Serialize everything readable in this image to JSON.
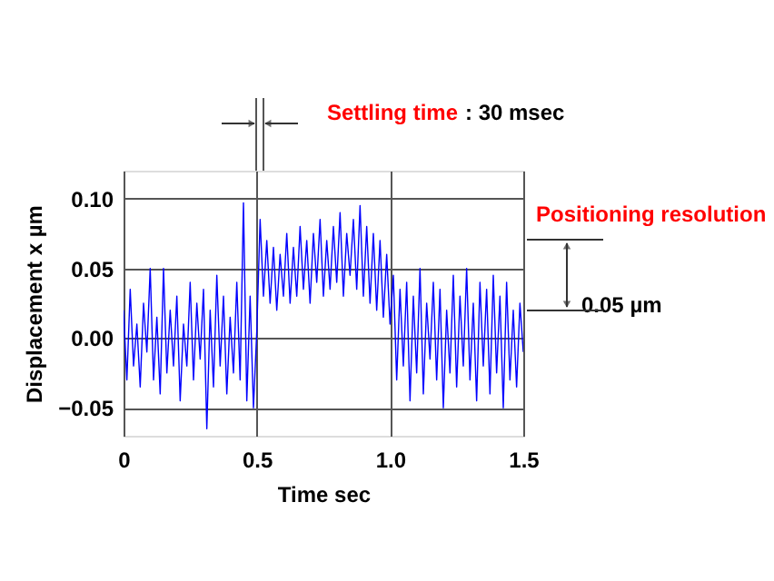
{
  "chart_data": {
    "type": "line",
    "xlabel": "Time sec",
    "ylabel": "Displacement x µm",
    "annotations": [
      "Settling time",
      ": 30 msec",
      "Positioning resolution",
      "0.05 µm"
    ],
    "xlim": [
      0,
      1.5
    ],
    "xticks": [
      {
        "value": 0,
        "label": "0"
      },
      0.5,
      {
        "value": 1.0,
        "label": "1.0"
      },
      1.5
    ],
    "ylim": [
      -0.07,
      0.12
    ],
    "yticks": [
      {
        "value": -0.05,
        "label": "−0.05"
      },
      {
        "value": 0,
        "label": "0.00"
      },
      0.05,
      {
        "value": 0.1,
        "label": "0.10"
      }
    ],
    "grid": true,
    "marker": "none",
    "line_style": "solid",
    "x": [
      0,
      0.0125,
      0.025,
      0.0375,
      0.05,
      0.0625,
      0.075,
      0.0875,
      0.1,
      0.1125,
      0.125,
      0.1375,
      0.15,
      0.1625,
      0.175,
      0.1875,
      0.2,
      0.2125,
      0.225,
      0.2375,
      0.25,
      0.2625,
      0.275,
      0.2875,
      0.3,
      0.3125,
      0.325,
      0.3375,
      0.35,
      0.3625,
      0.375,
      0.3875,
      0.4,
      0.4125,
      0.425,
      0.4375,
      0.45,
      0.4625,
      0.475,
      0.4875,
      0.5,
      0.5125,
      0.525,
      0.5375,
      0.55,
      0.5625,
      0.575,
      0.5875,
      0.6,
      0.6125,
      0.625,
      0.6375,
      0.65,
      0.6625,
      0.675,
      0.6875,
      0.7,
      0.7125,
      0.725,
      0.7375,
      0.75,
      0.7625,
      0.775,
      0.7875,
      0.8,
      0.8125,
      0.825,
      0.8375,
      0.85,
      0.8625,
      0.875,
      0.8875,
      0.9,
      0.9125,
      0.925,
      0.9375,
      0.95,
      0.9625,
      0.975,
      0.9875,
      1.0,
      1.0125,
      1.025,
      1.0375,
      1.05,
      1.0625,
      1.075,
      1.0875,
      1.1,
      1.1125,
      1.125,
      1.1375,
      1.15,
      1.1625,
      1.175,
      1.1875,
      1.2,
      1.2125,
      1.225,
      1.2375,
      1.25,
      1.2625,
      1.275,
      1.2875,
      1.3,
      1.3125,
      1.325,
      1.3375,
      1.35,
      1.3625,
      1.375,
      1.3875,
      1.4,
      1.4125,
      1.425,
      1.4375,
      1.45,
      1.4625,
      1.475,
      1.4875,
      1.5
    ],
    "series": [
      {
        "color": "#0000ff",
        "values": [
          0.02,
          -0.03,
          0.035,
          -0.02,
          0.01,
          -0.035,
          0.025,
          -0.01,
          0.05,
          -0.03,
          0.015,
          -0.04,
          0.05,
          -0.025,
          0.02,
          -0.02,
          0.03,
          -0.045,
          0.01,
          -0.02,
          0.04,
          -0.03,
          0.025,
          -0.015,
          0.035,
          -0.065,
          0.02,
          -0.035,
          0.045,
          -0.02,
          0.03,
          -0.04,
          0.015,
          -0.025,
          0.04,
          -0.03,
          0.097,
          -0.045,
          0.03,
          -0.05,
          0.005,
          0.085,
          0.03,
          0.07,
          0.025,
          0.065,
          0.02,
          0.06,
          0.03,
          0.075,
          0.025,
          0.065,
          0.03,
          0.08,
          0.035,
          0.07,
          0.025,
          0.075,
          0.04,
          0.085,
          0.03,
          0.07,
          0.035,
          0.08,
          0.04,
          0.09,
          0.03,
          0.075,
          0.045,
          0.085,
          0.035,
          0.095,
          0.03,
          0.08,
          0.025,
          0.075,
          0.02,
          0.07,
          0.015,
          0.06,
          0.01,
          0.045,
          -0.03,
          0.035,
          -0.02,
          0.04,
          -0.045,
          0.03,
          -0.025,
          0.05,
          -0.04,
          0.025,
          -0.015,
          0.04,
          -0.03,
          0.035,
          -0.05,
          0.02,
          -0.025,
          0.045,
          -0.035,
          0.03,
          -0.02,
          0.05,
          -0.03,
          0.025,
          -0.045,
          0.04,
          -0.02,
          0.035,
          -0.04,
          0.045,
          -0.025,
          0.03,
          -0.05,
          0.04,
          -0.03,
          0.02,
          -0.035,
          0.025,
          -0.01
        ]
      }
    ]
  }
}
